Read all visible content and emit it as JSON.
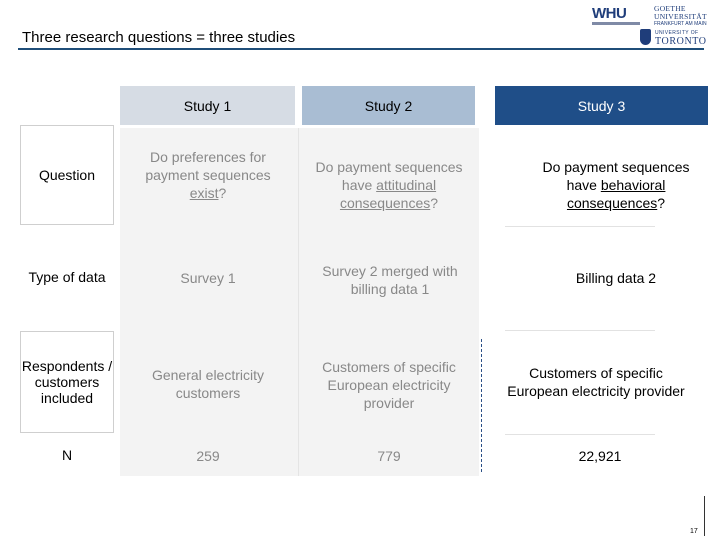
{
  "header": {
    "title": "Three research questions = three studies",
    "logos": {
      "whu": "WHU",
      "goethe_line1": "GOETHE",
      "goethe_line2": "UNIVERSITÄT",
      "goethe_line3": "FRANKFURT AM MAIN",
      "toronto_line1": "UNIVERSITY OF",
      "toronto_line2": "TORONTO"
    }
  },
  "columns": [
    "Study 1",
    "Study 2",
    "Study 3"
  ],
  "rows": [
    {
      "label": "Question",
      "study1": {
        "pre": "Do preferences for payment sequences ",
        "ul": "exist",
        "post": "?"
      },
      "study2": {
        "pre": "Do payment sequences have ",
        "ul": "attitudinal consequences",
        "post": "?"
      },
      "study3": {
        "pre": "Do payment sequences have ",
        "ul": "behavioral consequences",
        "post": "?"
      }
    },
    {
      "label": "Type of data",
      "study1": "Survey 1",
      "study2": "Survey 2 merged with billing data 1",
      "study3": "Billing data 2"
    },
    {
      "label": "Respondents / customers included",
      "study1": "General electricity customers",
      "study2": "Customers of specific European electricity provider",
      "study3": "Customers of specific European electricity provider"
    },
    {
      "label": "N",
      "study1": "259",
      "study2": "779",
      "study3": "22,921"
    }
  ],
  "page_number": "17",
  "colors": {
    "accent": "#1f4e88",
    "study2_header": "#a9bdd3",
    "study1_header": "#d6dce4"
  }
}
